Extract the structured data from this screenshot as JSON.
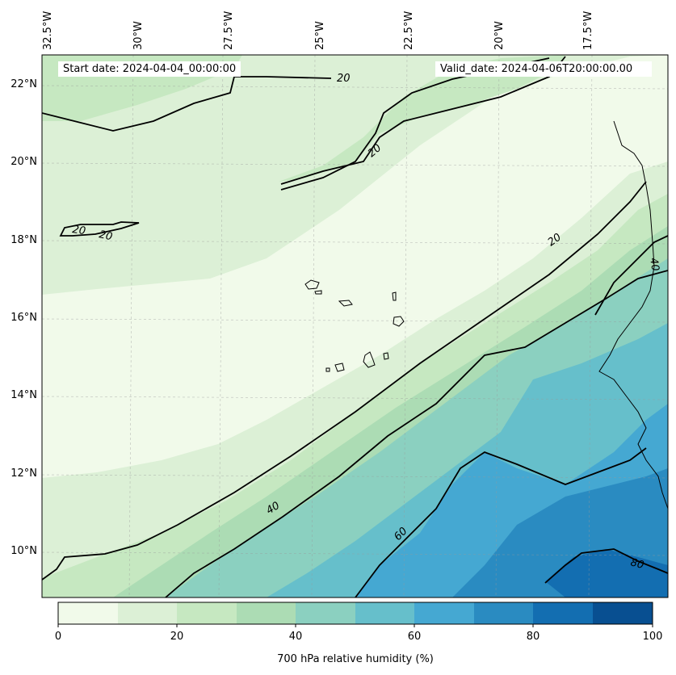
{
  "map": {
    "lon_labels": [
      "32.5°W",
      "30°W",
      "27.5°W",
      "25°W",
      "22.5°W",
      "20°W",
      "17.5°W"
    ],
    "lat_labels": [
      "22°N",
      "20°N",
      "18°N",
      "16°N",
      "14°N",
      "12°N",
      "10°N"
    ],
    "start_date": "Start date: 2024-04-04_00:00:00",
    "valid_date": "Valid_date: 2024-04-06T20:00:00.00",
    "contour_labels": [
      "20",
      "20",
      "20",
      "20",
      "20",
      "40",
      "40",
      "60",
      "80"
    ],
    "fill_colors": [
      "#f1faea",
      "#dcf0d6",
      "#c6e8c1",
      "#acdcb4",
      "#8bd0c0",
      "#66bfcb",
      "#45a8d2",
      "#2a8bc1",
      "#136eb1",
      "#084f91"
    ]
  },
  "colorbar": {
    "ticks": [
      "0",
      "20",
      "40",
      "60",
      "80",
      "100"
    ],
    "title": "700 hPa relative humidity (%)"
  }
}
